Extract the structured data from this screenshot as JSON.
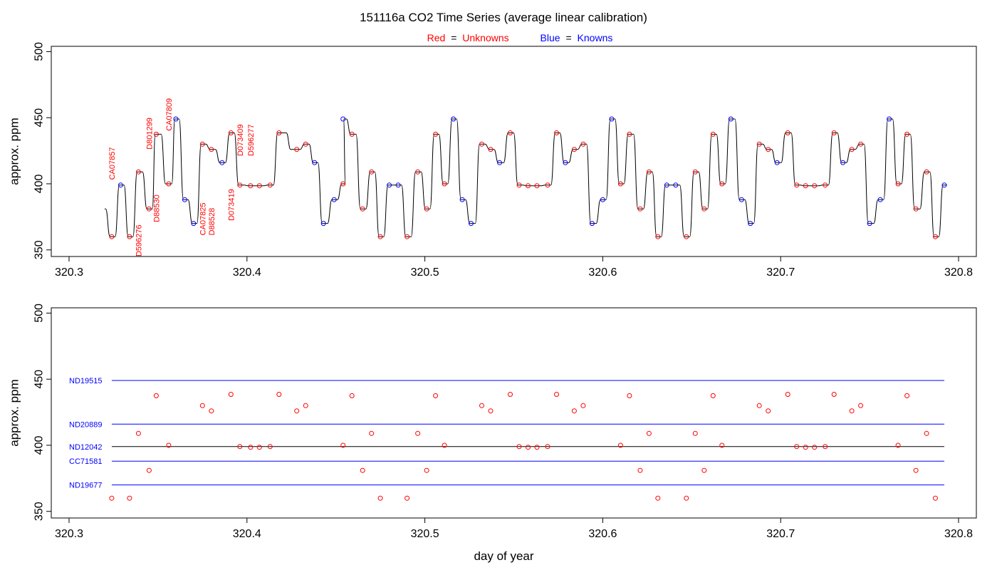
{
  "title": "151116a   CO2 Time Series (average linear calibration)",
  "legend": {
    "unknown_prefix": "Red",
    "eq": "=",
    "unknown_word": "Unknowns",
    "known_prefix": "Blue",
    "known_word": "Knowns"
  },
  "colors": {
    "unknown": "#ff0000",
    "known": "#0000ff",
    "line": "#000000"
  },
  "chart_data": [
    {
      "type": "line",
      "title": "",
      "xlabel": "",
      "ylabel": "approx. ppm",
      "xlim": [
        320.29,
        320.81
      ],
      "ylim": [
        345,
        504
      ],
      "xticks": [
        "320.3",
        "320.4",
        "320.5",
        "320.6",
        "320.7",
        "320.8"
      ],
      "yticks": [
        "350",
        "400",
        "450",
        "500"
      ],
      "series": [
        {
          "role": "unknown",
          "points": [
            [
              320.324,
              360
            ],
            [
              320.334,
              360
            ],
            [
              320.339,
              409
            ],
            [
              320.345,
              381
            ],
            [
              320.349,
              437.5
            ],
            [
              320.356,
              400
            ],
            [
              320.375,
              430
            ],
            [
              320.38,
              426
            ],
            [
              320.391,
              438.5
            ],
            [
              320.396,
              399
            ],
            [
              320.402,
              398.5
            ],
            [
              320.407,
              398.5
            ],
            [
              320.413,
              399
            ],
            [
              320.418,
              438.5
            ],
            [
              320.428,
              426
            ],
            [
              320.433,
              430
            ],
            [
              320.454,
              400
            ],
            [
              320.459,
              437.5
            ],
            [
              320.465,
              381
            ],
            [
              320.47,
              409
            ],
            [
              320.475,
              360
            ],
            [
              320.49,
              360
            ],
            [
              320.496,
              409
            ],
            [
              320.501,
              381
            ],
            [
              320.506,
              437.5
            ],
            [
              320.511,
              400
            ],
            [
              320.532,
              430
            ],
            [
              320.537,
              426
            ],
            [
              320.548,
              438.5
            ],
            [
              320.553,
              399
            ],
            [
              320.558,
              398.5
            ],
            [
              320.563,
              398.5
            ],
            [
              320.569,
              399
            ],
            [
              320.574,
              438.5
            ],
            [
              320.584,
              426
            ],
            [
              320.589,
              430
            ],
            [
              320.61,
              400
            ],
            [
              320.615,
              437.5
            ],
            [
              320.621,
              381
            ],
            [
              320.626,
              409
            ],
            [
              320.631,
              360
            ],
            [
              320.647,
              360
            ],
            [
              320.652,
              409
            ],
            [
              320.657,
              381
            ],
            [
              320.662,
              437.5
            ],
            [
              320.667,
              400
            ],
            [
              320.688,
              430
            ],
            [
              320.693,
              426
            ],
            [
              320.704,
              438.5
            ],
            [
              320.709,
              399
            ],
            [
              320.714,
              398.5
            ],
            [
              320.719,
              398.5
            ],
            [
              320.725,
              399
            ],
            [
              320.73,
              438.5
            ],
            [
              320.74,
              426
            ],
            [
              320.745,
              430
            ],
            [
              320.766,
              400
            ],
            [
              320.771,
              437.5
            ],
            [
              320.776,
              381
            ],
            [
              320.782,
              409
            ],
            [
              320.787,
              360
            ]
          ]
        },
        {
          "role": "known",
          "points": [
            [
              320.329,
              399
            ],
            [
              320.36,
              449
            ],
            [
              320.365,
              388
            ],
            [
              320.37,
              370
            ],
            [
              320.386,
              416
            ],
            [
              320.438,
              416
            ],
            [
              320.443,
              370
            ],
            [
              320.449,
              388
            ],
            [
              320.454,
              449
            ],
            [
              320.48,
              399
            ],
            [
              320.485,
              399
            ],
            [
              320.516,
              449
            ],
            [
              320.521,
              388
            ],
            [
              320.526,
              370
            ],
            [
              320.542,
              416
            ],
            [
              320.579,
              416
            ],
            [
              320.594,
              370
            ],
            [
              320.6,
              388
            ],
            [
              320.605,
              449
            ],
            [
              320.636,
              399
            ],
            [
              320.641,
              399
            ],
            [
              320.672,
              449
            ],
            [
              320.678,
              388
            ],
            [
              320.683,
              370
            ],
            [
              320.698,
              416
            ],
            [
              320.735,
              416
            ],
            [
              320.75,
              370
            ],
            [
              320.756,
              388
            ],
            [
              320.761,
              449
            ],
            [
              320.792,
              399
            ]
          ]
        }
      ],
      "trace_start": [
        320.32,
        381
      ],
      "annotations": [
        {
          "text": "CA07857",
          "x": 320.324,
          "y": 403
        },
        {
          "text": "D596276",
          "x": 320.339,
          "y": 345
        },
        {
          "text": "D801299",
          "x": 320.345,
          "y": 426
        },
        {
          "text": "D88530",
          "x": 320.349,
          "y": 371
        },
        {
          "text": "CA07809",
          "x": 320.356,
          "y": 440
        },
        {
          "text": "CA07825",
          "x": 320.375,
          "y": 361
        },
        {
          "text": "D88528",
          "x": 320.38,
          "y": 361
        },
        {
          "text": "D073419",
          "x": 320.391,
          "y": 372
        },
        {
          "text": "D073409",
          "x": 320.396,
          "y": 421
        },
        {
          "text": "D596277",
          "x": 320.402,
          "y": 421
        }
      ]
    },
    {
      "type": "scatter",
      "title": "",
      "xlabel": "day of year",
      "ylabel": "approx. ppm",
      "xlim": [
        320.29,
        320.81
      ],
      "ylim": [
        345,
        504
      ],
      "xticks": [
        "320.3",
        "320.4",
        "320.5",
        "320.6",
        "320.7",
        "320.8"
      ],
      "yticks": [
        "350",
        "400",
        "450",
        "500"
      ],
      "reference_lines": [
        {
          "label": "ND19515",
          "y": 449,
          "color": "#0000ff"
        },
        {
          "label": "ND20889",
          "y": 416,
          "color": "#0000ff"
        },
        {
          "label": "ND12042",
          "y": 399,
          "color": "#000000"
        },
        {
          "label": "CC71581",
          "y": 388,
          "color": "#0000ff"
        },
        {
          "label": "ND19677",
          "y": 370,
          "color": "#0000ff"
        }
      ],
      "reference_x_range": [
        320.324,
        320.792
      ],
      "series": [
        {
          "role": "unknown",
          "points": [
            [
              320.324,
              360
            ],
            [
              320.334,
              360
            ],
            [
              320.339,
              409
            ],
            [
              320.345,
              381
            ],
            [
              320.349,
              437.5
            ],
            [
              320.356,
              400
            ],
            [
              320.375,
              430
            ],
            [
              320.38,
              426
            ],
            [
              320.391,
              438.5
            ],
            [
              320.396,
              399
            ],
            [
              320.402,
              398.5
            ],
            [
              320.407,
              398.5
            ],
            [
              320.413,
              399
            ],
            [
              320.418,
              438.5
            ],
            [
              320.428,
              426
            ],
            [
              320.433,
              430
            ],
            [
              320.454,
              400
            ],
            [
              320.459,
              437.5
            ],
            [
              320.465,
              381
            ],
            [
              320.47,
              409
            ],
            [
              320.475,
              360
            ],
            [
              320.49,
              360
            ],
            [
              320.496,
              409
            ],
            [
              320.501,
              381
            ],
            [
              320.506,
              437.5
            ],
            [
              320.511,
              400
            ],
            [
              320.532,
              430
            ],
            [
              320.537,
              426
            ],
            [
              320.548,
              438.5
            ],
            [
              320.553,
              399
            ],
            [
              320.558,
              398.5
            ],
            [
              320.563,
              398.5
            ],
            [
              320.569,
              399
            ],
            [
              320.574,
              438.5
            ],
            [
              320.584,
              426
            ],
            [
              320.589,
              430
            ],
            [
              320.61,
              400
            ],
            [
              320.615,
              437.5
            ],
            [
              320.621,
              381
            ],
            [
              320.626,
              409
            ],
            [
              320.631,
              360
            ],
            [
              320.647,
              360
            ],
            [
              320.652,
              409
            ],
            [
              320.657,
              381
            ],
            [
              320.662,
              437.5
            ],
            [
              320.667,
              400
            ],
            [
              320.688,
              430
            ],
            [
              320.693,
              426
            ],
            [
              320.704,
              438.5
            ],
            [
              320.709,
              399
            ],
            [
              320.714,
              398.5
            ],
            [
              320.719,
              398.5
            ],
            [
              320.725,
              399
            ],
            [
              320.73,
              438.5
            ],
            [
              320.74,
              426
            ],
            [
              320.745,
              430
            ],
            [
              320.766,
              400
            ],
            [
              320.771,
              437.5
            ],
            [
              320.776,
              381
            ],
            [
              320.782,
              409
            ],
            [
              320.787,
              360
            ]
          ]
        }
      ]
    }
  ]
}
